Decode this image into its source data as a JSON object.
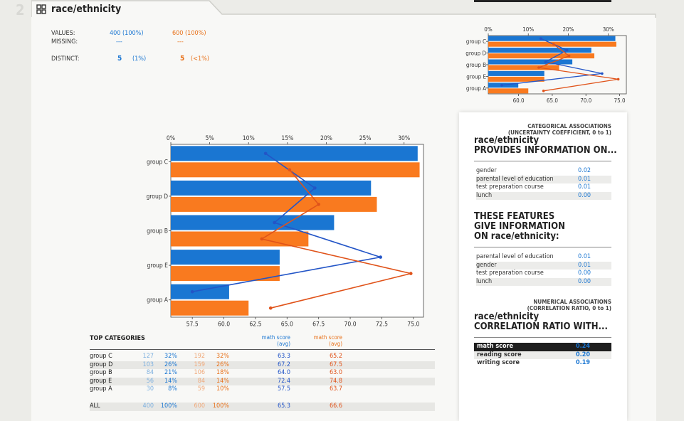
{
  "feature_number": "2",
  "title": "race/ethnicity",
  "summary": {
    "values_label": "VALUES:",
    "missing_label": "MISSING:",
    "distinct_label": "DISTINCT:",
    "values_blue": "400 (100%)",
    "values_orange": "600 (100%)",
    "missing_blue": "---",
    "missing_orange": "---",
    "distinct_blue": "5",
    "distinct_blue_pct": "(1%)",
    "distinct_orange": "5",
    "distinct_orange_pct": "(<1%)"
  },
  "colors": {
    "blue": "#1a76d2",
    "orange": "#f97a1f",
    "blue_line": "#2355c7",
    "orange_line": "#e0531a"
  },
  "chart_data": [
    {
      "type": "bar",
      "orientation": "horizontal",
      "categories": [
        "group C",
        "group D",
        "group B",
        "group E",
        "group A"
      ],
      "series": [
        {
          "name": "",
          "color": "blue",
          "values": [
            31.75,
            25.75,
            21,
            14,
            7.5
          ]
        },
        {
          "name": "",
          "color": "orange",
          "values": [
            32,
            26.5,
            17.7,
            14,
            10
          ]
        }
      ],
      "xlim_pct": [
        0,
        32.5
      ],
      "top_ticks": [
        "0%",
        "5%",
        "10%",
        "15%",
        "20%",
        "25%",
        "30%"
      ],
      "top_tick_values": [
        0,
        5,
        10,
        15,
        20,
        25,
        30
      ],
      "overlay": {
        "type": "line",
        "xlim": [
          55.8,
          75.8
        ],
        "bottom_ticks": [
          "57.5",
          "60.0",
          "62.5",
          "65.0",
          "67.5",
          "70.0",
          "72.5",
          "75.0"
        ],
        "bottom_tick_values": [
          57.5,
          60,
          62.5,
          65,
          67.5,
          70,
          72.5,
          75
        ],
        "series": [
          {
            "name": "",
            "color": "blue_line",
            "values": [
              63.3,
              67.2,
              64.0,
              72.4,
              57.5
            ]
          },
          {
            "name": "",
            "color": "orange_line",
            "values": [
              65.2,
              67.5,
              63.0,
              74.8,
              63.7
            ]
          }
        ]
      }
    },
    {
      "type": "bar",
      "orientation": "horizontal",
      "categories": [
        "group C",
        "group D",
        "group B",
        "group E",
        "group A"
      ],
      "series": [
        {
          "name": "",
          "color": "blue",
          "values": [
            31.75,
            25.75,
            21,
            14,
            7.5
          ]
        },
        {
          "name": "",
          "color": "orange",
          "values": [
            32,
            26.5,
            17.7,
            14,
            10
          ]
        }
      ],
      "xlim_pct": [
        0,
        34.5
      ],
      "top_ticks": [
        "0%",
        "10%",
        "20%",
        "30%"
      ],
      "top_tick_values": [
        0,
        10,
        20,
        30
      ],
      "overlay": {
        "type": "line",
        "xlim": [
          55.5,
          76
        ],
        "bottom_ticks": [
          "60.0",
          "65.0",
          "70.0",
          "75.0"
        ],
        "bottom_tick_values": [
          60,
          65,
          70,
          75
        ],
        "series": [
          {
            "name": "",
            "color": "blue_line",
            "values": [
              63.3,
              67.2,
              64.0,
              72.4,
              57.5
            ]
          },
          {
            "name": "",
            "color": "orange_line",
            "values": [
              65.2,
              67.5,
              63.0,
              74.8,
              63.7
            ]
          }
        ]
      }
    }
  ],
  "top_categories": {
    "title": "TOP CATEGORIES",
    "col_blue_head": "math score\n(avg)",
    "col_blue_head1": "math score",
    "col_blue_head2": "(avg)",
    "col_orange_head1": "math score",
    "col_orange_head2": "(avg)",
    "rows": [
      {
        "name": "group C",
        "bc": "127",
        "bp": "32%",
        "oc": "192",
        "op": "32%",
        "bavg": "63.3",
        "oavg": "65.2"
      },
      {
        "name": "group D",
        "bc": "103",
        "bp": "26%",
        "oc": "159",
        "op": "26%",
        "bavg": "67.2",
        "oavg": "67.5"
      },
      {
        "name": "group B",
        "bc": "84",
        "bp": "21%",
        "oc": "106",
        "op": "18%",
        "bavg": "64.0",
        "oavg": "63.0"
      },
      {
        "name": "group E",
        "bc": "56",
        "bp": "14%",
        "oc": "84",
        "op": "14%",
        "bavg": "72.4",
        "oavg": "74.8"
      },
      {
        "name": "group A",
        "bc": "30",
        "bp": "8%",
        "oc": "59",
        "op": "10%",
        "bavg": "57.5",
        "oavg": "63.7"
      }
    ],
    "all": {
      "name": "ALL",
      "bc": "400",
      "bp": "100%",
      "oc": "600",
      "op": "100%",
      "bavg": "65.3",
      "oavg": "66.6"
    }
  },
  "associations": {
    "cat_head1": "CATEGORICAL ASSOCIATIONS",
    "cat_head2": "(UNCERTAINTY COEFFICIENT, 0 to 1)",
    "provides_title1": "race/ethnicity",
    "provides_title2": "PROVIDES INFORMATION ON...",
    "provides": [
      {
        "name": "gender",
        "value": "0.02"
      },
      {
        "name": "parental level of education",
        "value": "0.01"
      },
      {
        "name": "test preparation course",
        "value": "0.01"
      },
      {
        "name": "lunch",
        "value": "0.00"
      }
    ],
    "given_title1": "THESE FEATURES",
    "given_title2": "GIVE INFORMATION",
    "given_title3": "ON race/ethnicity:",
    "given": [
      {
        "name": "parental level of education",
        "value": "0.01"
      },
      {
        "name": "gender",
        "value": "0.01"
      },
      {
        "name": "test preparation course",
        "value": "0.00"
      },
      {
        "name": "lunch",
        "value": "0.00"
      }
    ],
    "num_head1": "NUMERICAL ASSOCIATIONS",
    "num_head2": "(CORRELATION RATIO, 0 to 1)",
    "corr_title1": "race/ethnicity",
    "corr_title2": "CORRELATION RATIO WITH...",
    "corr": [
      {
        "name": "math score",
        "value": "0.24"
      },
      {
        "name": "reading score",
        "value": "0.20"
      },
      {
        "name": "writing score",
        "value": "0.19"
      }
    ]
  }
}
